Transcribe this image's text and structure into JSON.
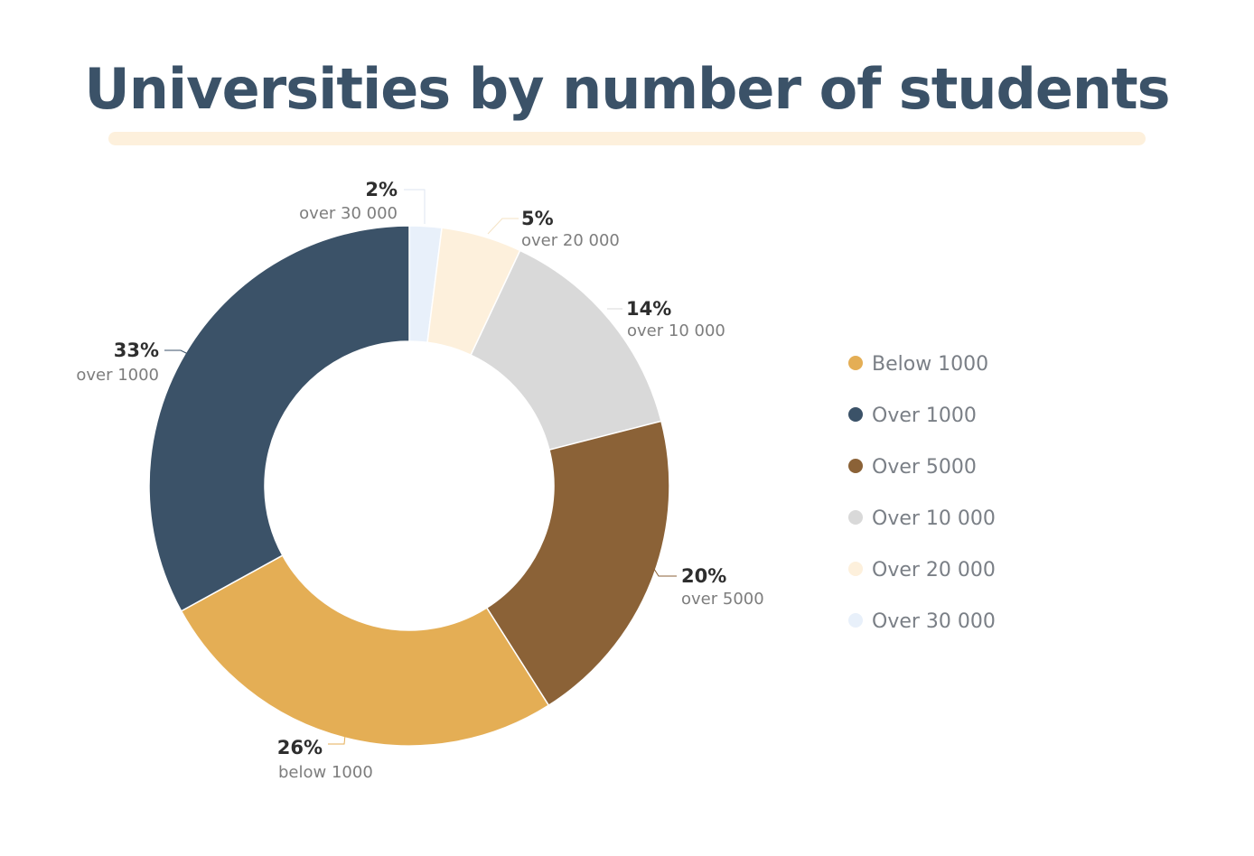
{
  "chart_data": {
    "type": "pie",
    "donut": true,
    "title": "Universities by number of students",
    "slices": [
      {
        "pct_label": "2%",
        "value": 2,
        "label": "over 30 000",
        "color": "#e8f0fa"
      },
      {
        "pct_label": "5%",
        "value": 5,
        "label": "over 20 000",
        "color": "#fdf0dc"
      },
      {
        "pct_label": "14%",
        "value": 14,
        "label": "over 10 000",
        "color": "#d9d9d9"
      },
      {
        "pct_label": "20%",
        "value": 20,
        "label": "over 5000",
        "color": "#8b6237"
      },
      {
        "pct_label": "26%",
        "value": 26,
        "label": "below 1000",
        "color": "#e4ae55"
      },
      {
        "pct_label": "33%",
        "value": 33,
        "label": "over 1000",
        "color": "#3b5268"
      }
    ],
    "legend_placement": "right",
    "legend": [
      {
        "label": "Below 1000",
        "color": "#e4ae55"
      },
      {
        "label": "Over 1000",
        "color": "#3b5268"
      },
      {
        "label": "Over 5000",
        "color": "#8b6237"
      },
      {
        "label": "Over 10 000",
        "color": "#d9d9d9"
      },
      {
        "label": "Over 20 000",
        "color": "#fdf0dc"
      },
      {
        "label": "Over 30 000",
        "color": "#e8f0fa"
      }
    ]
  },
  "colors": {
    "title": "#3b5268",
    "underline": "#fdf0dc"
  }
}
